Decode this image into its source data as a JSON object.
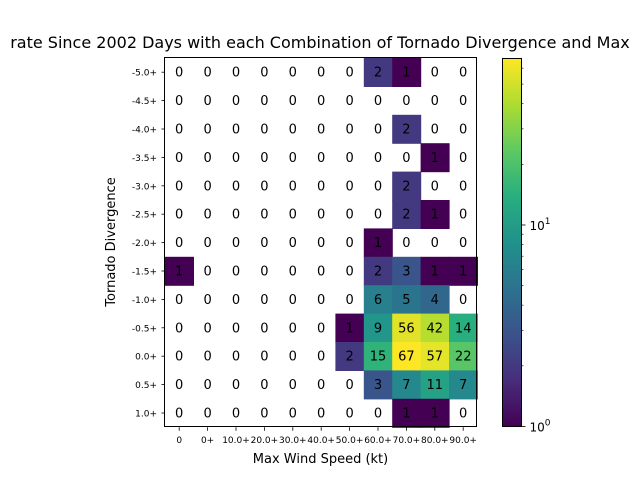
{
  "chart_data": {
    "type": "heatmap",
    "title": "rate Since 2002 Days with each Combination of Tornado Divergence and Max",
    "xlabel": "Max Wind Speed (kt)",
    "ylabel": "Tornado Divergence",
    "x_categories": [
      "0",
      "0+",
      "10.0+",
      "20.0+",
      "30.0+",
      "40.0+",
      "50.0+",
      "60.0+",
      "70.0+",
      "80.0+",
      "90.0+"
    ],
    "y_categories": [
      "-5.0+",
      "-4.5+",
      "-4.0+",
      "-3.5+",
      "-3.0+",
      "-2.5+",
      "-2.0+",
      "-1.5+",
      "-1.0+",
      "-0.5+",
      "0.0+",
      "0.5+",
      "1.0+"
    ],
    "values": [
      [
        0,
        0,
        0,
        0,
        0,
        0,
        0,
        2,
        1,
        0,
        0
      ],
      [
        0,
        0,
        0,
        0,
        0,
        0,
        0,
        0,
        0,
        0,
        0
      ],
      [
        0,
        0,
        0,
        0,
        0,
        0,
        0,
        0,
        2,
        0,
        0
      ],
      [
        0,
        0,
        0,
        0,
        0,
        0,
        0,
        0,
        0,
        1,
        0
      ],
      [
        0,
        0,
        0,
        0,
        0,
        0,
        0,
        0,
        2,
        0,
        0
      ],
      [
        0,
        0,
        0,
        0,
        0,
        0,
        0,
        0,
        2,
        1,
        0
      ],
      [
        0,
        0,
        0,
        0,
        0,
        0,
        0,
        1,
        0,
        0,
        0
      ],
      [
        1,
        0,
        0,
        0,
        0,
        0,
        0,
        2,
        3,
        1,
        1
      ],
      [
        0,
        0,
        0,
        0,
        0,
        0,
        0,
        6,
        5,
        4,
        0
      ],
      [
        0,
        0,
        0,
        0,
        0,
        0,
        1,
        9,
        56,
        42,
        14
      ],
      [
        0,
        0,
        0,
        0,
        0,
        0,
        2,
        15,
        67,
        57,
        22
      ],
      [
        0,
        0,
        0,
        0,
        0,
        0,
        0,
        3,
        7,
        11,
        7
      ],
      [
        0,
        0,
        0,
        0,
        0,
        0,
        0,
        0,
        1,
        1,
        0
      ]
    ],
    "colorbar": {
      "scale": "log",
      "colormap": "viridis",
      "range": [
        1,
        67
      ],
      "tick_labels": [
        "10^0",
        "10^1"
      ]
    }
  }
}
